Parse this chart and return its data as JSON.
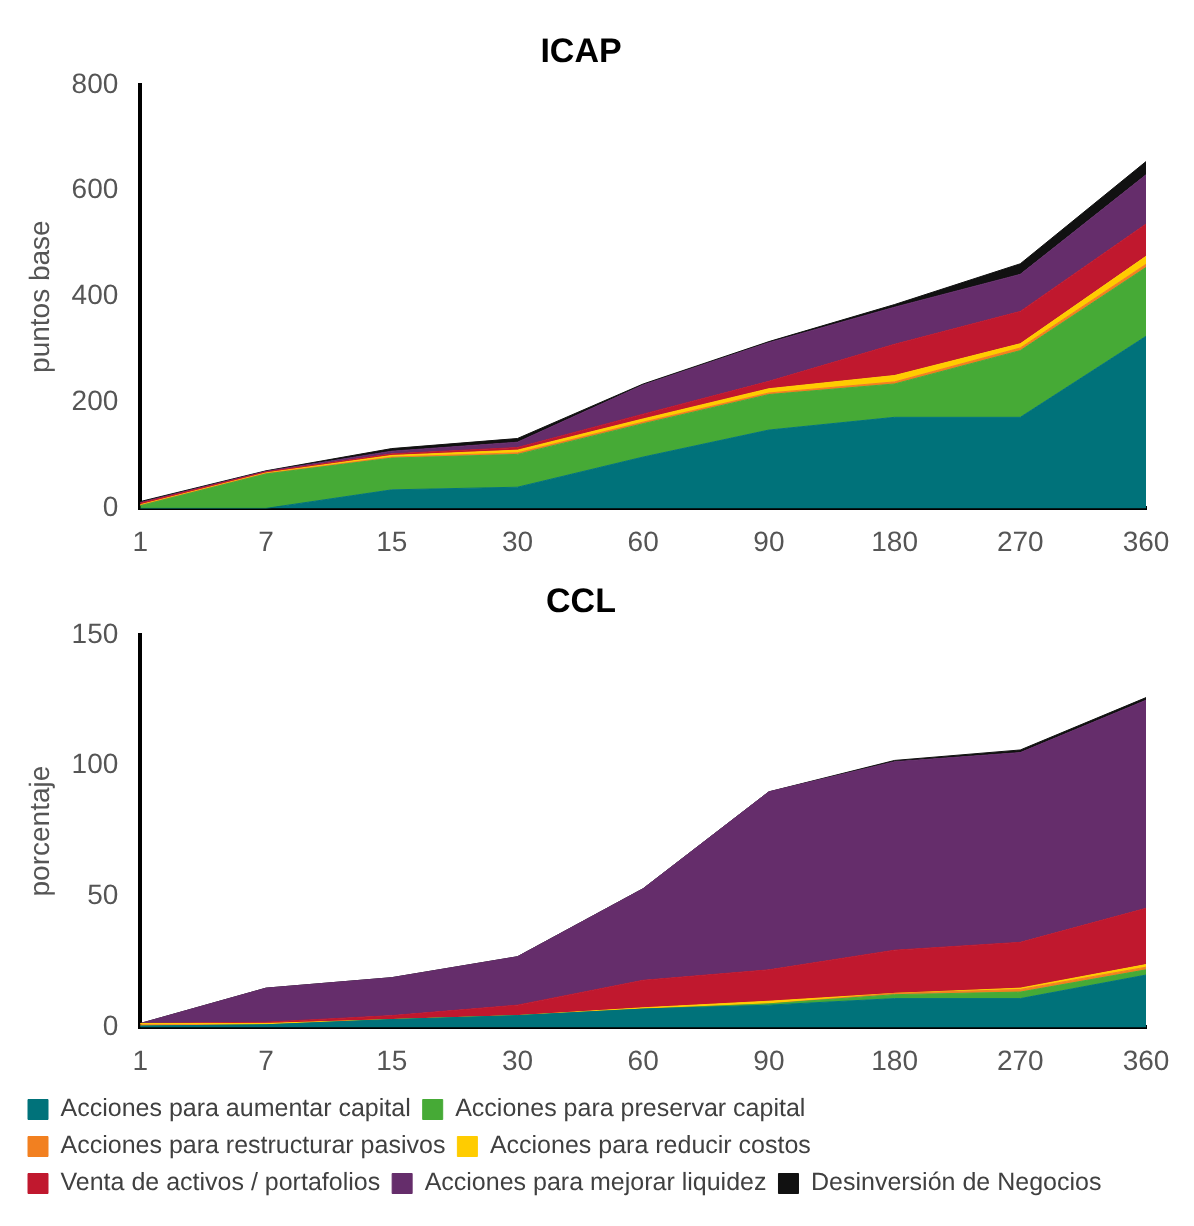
{
  "chart_data": [
    {
      "type": "area",
      "title": "ICAP",
      "ylabel": "puntos base",
      "stacked": true,
      "grid": false,
      "legend": false,
      "categories": [
        "1",
        "7",
        "15",
        "30",
        "60",
        "90",
        "180",
        "270",
        "360"
      ],
      "ylim": [
        0,
        800
      ],
      "yticks": [
        0,
        200,
        400,
        600,
        800
      ],
      "series": [
        {
          "color": "#00727a",
          "values": [
            0,
            0,
            35,
            40,
            97,
            148,
            172,
            172,
            325
          ]
        },
        {
          "color": "#46aa36",
          "values": [
            5,
            65,
            60,
            62,
            63,
            67,
            63,
            126,
            130
          ]
        },
        {
          "color": "#f28020",
          "values": [
            1,
            1,
            2,
            3,
            3,
            3,
            4,
            5,
            6
          ]
        },
        {
          "color": "#ffcc00",
          "values": [
            1,
            1,
            3,
            5,
            6,
            8,
            12,
            8,
            15
          ]
        },
        {
          "color": "#c0182e",
          "values": [
            3,
            2,
            3,
            5,
            9,
            14,
            59,
            61,
            61
          ]
        },
        {
          "color": "#652d6b",
          "values": [
            1,
            1,
            5,
            10,
            55,
            73,
            70,
            70,
            93
          ]
        },
        {
          "color": "#111111",
          "values": [
            2,
            1,
            5,
            7,
            2,
            2,
            5,
            20,
            25
          ]
        }
      ]
    },
    {
      "type": "area",
      "title": "CCL",
      "ylabel": "porcentaje",
      "stacked": true,
      "grid": false,
      "legend": "bottom",
      "categories": [
        "1",
        "7",
        "15",
        "30",
        "60",
        "90",
        "180",
        "270",
        "360"
      ],
      "ylim": [
        0,
        150
      ],
      "yticks": [
        0,
        50,
        100,
        150
      ],
      "series": [
        {
          "name": "Acciones para aumentar capital",
          "color": "#00727a",
          "values": [
            0.5,
            1,
            3,
            4.5,
            7,
            8.5,
            11,
            11,
            20
          ]
        },
        {
          "name": "Acciones para preservar capital",
          "color": "#46aa36",
          "values": [
            0,
            0,
            0,
            0,
            0,
            0.5,
            1.5,
            2.5,
            2
          ]
        },
        {
          "name": "Acciones para restructurar pasivos",
          "color": "#f28020",
          "values": [
            0.5,
            0,
            0,
            0,
            0,
            0,
            0.5,
            1,
            1
          ]
        },
        {
          "name": "Acciones para reducir costos",
          "color": "#ffcc00",
          "values": [
            0.5,
            0.5,
            0,
            0,
            0.5,
            1,
            0,
            0.5,
            1
          ]
        },
        {
          "name": "Venta de activos / portafolios",
          "color": "#c0182e",
          "values": [
            0,
            0.5,
            1.5,
            4,
            10.5,
            12,
            16.5,
            17.5,
            21.5
          ]
        },
        {
          "name": "Acciones para mejorar liquidez",
          "color": "#652d6b",
          "values": [
            0,
            13,
            14.5,
            18.5,
            35,
            68,
            72,
            72.5,
            79.5
          ]
        },
        {
          "name": "Desinversión de Negocios",
          "color": "#111111",
          "values": [
            0,
            0,
            0,
            0,
            0,
            0,
            0.5,
            1,
            1
          ]
        }
      ]
    }
  ]
}
